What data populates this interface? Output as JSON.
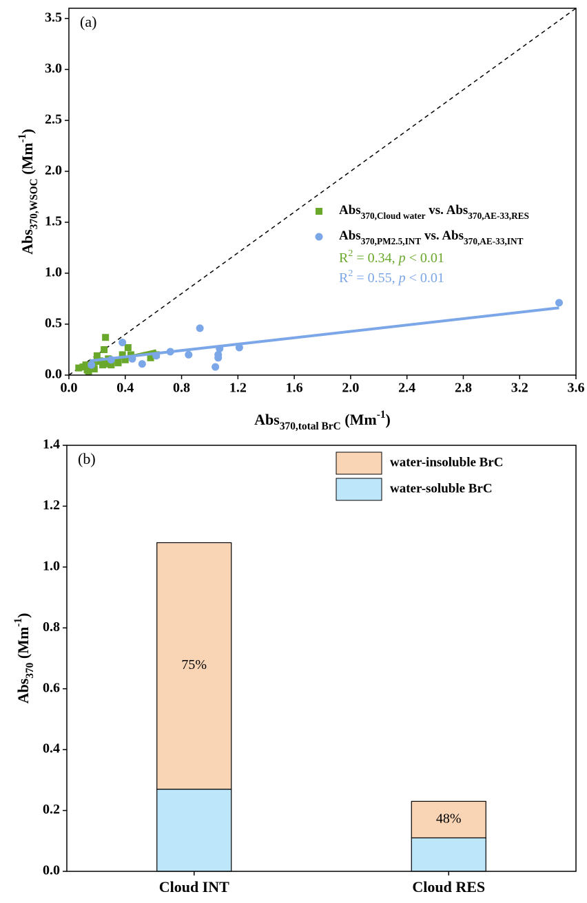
{
  "chart_data": [
    {
      "type": "scatter",
      "panel_label": "(a)",
      "x_label": [
        {
          "text": "Abs"
        },
        {
          "text": "370,total BrC",
          "style": "sub"
        },
        {
          "text": " (Mm"
        },
        {
          "text": "-1",
          "style": "sup"
        },
        {
          "text": ")"
        }
      ],
      "y_label": [
        {
          "text": "Abs"
        },
        {
          "text": "370,WSOC",
          "style": "sub"
        },
        {
          "text": " (Mm"
        },
        {
          "text": "-1",
          "style": "sup"
        },
        {
          "text": ")"
        }
      ],
      "xlim": [
        0,
        3.6
      ],
      "ylim": [
        0,
        3.6
      ],
      "xticks": [
        {
          "value": 0,
          "label": "0.0"
        },
        0.4,
        0.8,
        1.2,
        1.6,
        {
          "value": 2,
          "label": "2.0"
        },
        2.4,
        2.8,
        3.2,
        3.6
      ],
      "yticks": [
        {
          "value": 0,
          "label": "0.0"
        },
        0.5,
        {
          "value": 1,
          "label": "1.0"
        },
        1.5,
        {
          "value": 2,
          "label": "2.0"
        },
        2.5,
        {
          "value": 3,
          "label": "3.0"
        },
        3.5
      ],
      "identity_line": true,
      "series": [
        {
          "name": [
            {
              "text": "Abs"
            },
            {
              "text": "370,Cloud water",
              "style": "sub"
            },
            {
              "text": " vs. Abs"
            },
            {
              "text": "370,AE-33,RES",
              "style": "sub"
            }
          ],
          "color": "#6aa82c",
          "marker": "square",
          "x": [
            0.07,
            0.1,
            0.12,
            0.13,
            0.14,
            0.15,
            0.17,
            0.18,
            0.2,
            0.22,
            0.25,
            0.26,
            0.27,
            0.28,
            0.3,
            0.35,
            0.38,
            0.4,
            0.42,
            0.44,
            0.58,
            0.62,
            0.24,
            0.3
          ],
          "y": [
            0.07,
            0.08,
            0.1,
            0.05,
            0.03,
            0.07,
            0.12,
            0.06,
            0.19,
            0.14,
            0.25,
            0.37,
            0.11,
            0.16,
            0.14,
            0.12,
            0.2,
            0.15,
            0.27,
            0.2,
            0.17,
            0.2,
            0.1,
            0.1
          ],
          "fit": {
            "x": [
              0.1,
              0.62
            ],
            "y": [
              0.08,
              0.24
            ]
          }
        },
        {
          "name": [
            {
              "text": "Abs"
            },
            {
              "text": "370,PM2.5,INT",
              "style": "sub"
            },
            {
              "text": " vs. Abs"
            },
            {
              "text": "370,AE-33,INT",
              "style": "sub"
            }
          ],
          "color": "#7ba6e8",
          "marker": "circle",
          "x": [
            0.38,
            0.52,
            0.62,
            0.72,
            0.85,
            0.93,
            1.04,
            1.06,
            1.06,
            1.07,
            1.21,
            3.48,
            0.16,
            0.3,
            0.45
          ],
          "y": [
            0.32,
            0.11,
            0.19,
            0.23,
            0.2,
            0.46,
            0.08,
            0.17,
            0.2,
            0.26,
            0.27,
            0.71,
            0.1,
            0.15,
            0.16
          ],
          "fit": {
            "x": [
              0.15,
              3.48
            ],
            "y": [
              0.14,
              0.66
            ]
          }
        }
      ],
      "annotations": [
        {
          "color": "#6aa82c",
          "text": [
            {
              "text": "R"
            },
            {
              "text": "2",
              "style": "sup"
            },
            {
              "text": " = 0.34, "
            },
            {
              "text": "p",
              "style": "italic"
            },
            {
              "text": " < 0.01"
            }
          ]
        },
        {
          "color": "#7ba6e8",
          "text": [
            {
              "text": "R"
            },
            {
              "text": "2",
              "style": "sup"
            },
            {
              "text": " = 0.55, "
            },
            {
              "text": "p",
              "style": "italic"
            },
            {
              "text": " < 0.01"
            }
          ]
        }
      ],
      "legend": "right"
    },
    {
      "type": "stacked-bar",
      "panel_label": "(b)",
      "y_label": [
        {
          "text": "Abs"
        },
        {
          "text": "370",
          "style": "sub"
        },
        {
          "text": " (Mm"
        },
        {
          "text": "-1",
          "style": "sup"
        },
        {
          "text": ")"
        }
      ],
      "categories": [
        "Cloud INT",
        "Cloud RES"
      ],
      "series": [
        {
          "name": "water-soluble BrC",
          "color": "#bde6fb",
          "values": [
            0.27,
            0.11
          ]
        },
        {
          "name": "water-insoluble BrC",
          "color": "#f9d5b5",
          "values": [
            0.81,
            0.12
          ]
        }
      ],
      "annotations": [
        "75%",
        "48%"
      ],
      "ylim": [
        0,
        1.4
      ],
      "yticks": [
        {
          "value": 0,
          "label": "0.0"
        },
        0.2,
        0.4,
        0.6,
        0.8,
        {
          "value": 1,
          "label": "1.0"
        },
        1.2,
        1.4
      ],
      "legend": "upper right"
    }
  ]
}
